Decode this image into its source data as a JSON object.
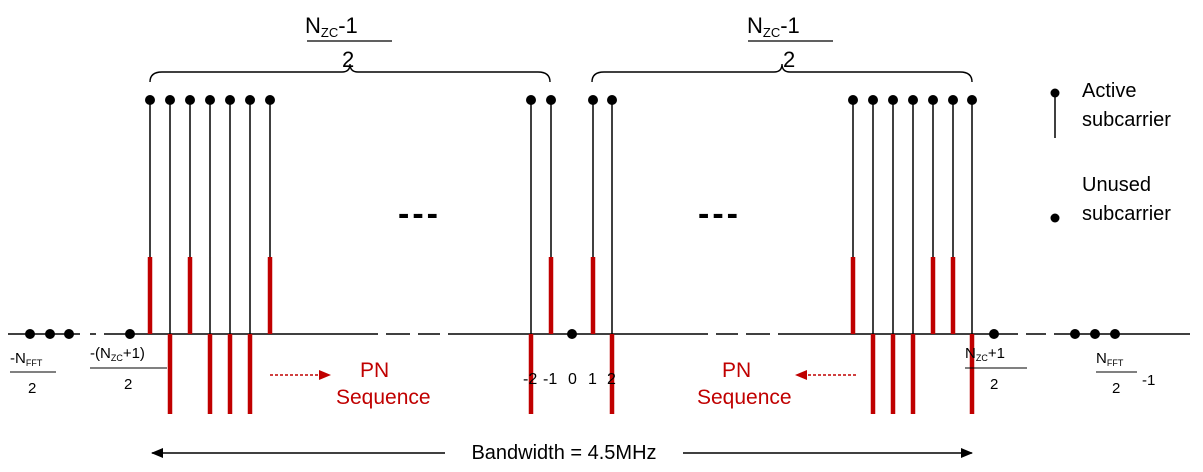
{
  "colors": {
    "line": "#000000",
    "pn": "#c00000",
    "background": "#ffffff"
  },
  "top_label_left": {
    "main": "N",
    "sub": "ZC",
    "suffix": "-1",
    "denominator": "2"
  },
  "top_label_right": {
    "main": "N",
    "sub": "ZC",
    "suffix": "-1",
    "denominator": "2"
  },
  "legend": {
    "active": {
      "line1": "Active",
      "line2": "subcarrier"
    },
    "unused": {
      "line1": "Unused",
      "line2": "subcarrier"
    }
  },
  "ellipsis_left": "---",
  "ellipsis_right": "---",
  "axis_labels": {
    "neg_nfft_half": {
      "prefix": "-N",
      "sub": "FFT",
      "denominator": "2"
    },
    "neg_nzc_plus1_half": {
      "prefix": "-(N",
      "sub": "ZC",
      "suffix": "+1)",
      "denominator": "2"
    },
    "center_indices": {
      "m2": "-2",
      "m1": "-1",
      "zero": "0",
      "one": "1",
      "two": "2"
    },
    "nzc_plus1_half": {
      "prefix": "N",
      "sub": "ZC",
      "suffix": "+1",
      "denominator": "2"
    },
    "nfft_half_minus1": {
      "prefix": "N",
      "sub": "FFT",
      "denominator": "2",
      "suffix": "-1"
    }
  },
  "pn_left": {
    "line1": "PN",
    "line2": "Sequence"
  },
  "pn_right": {
    "line1": "PN",
    "line2": "Sequence"
  },
  "bandwidth_label": "Bandwidth = 4.5MHz"
}
